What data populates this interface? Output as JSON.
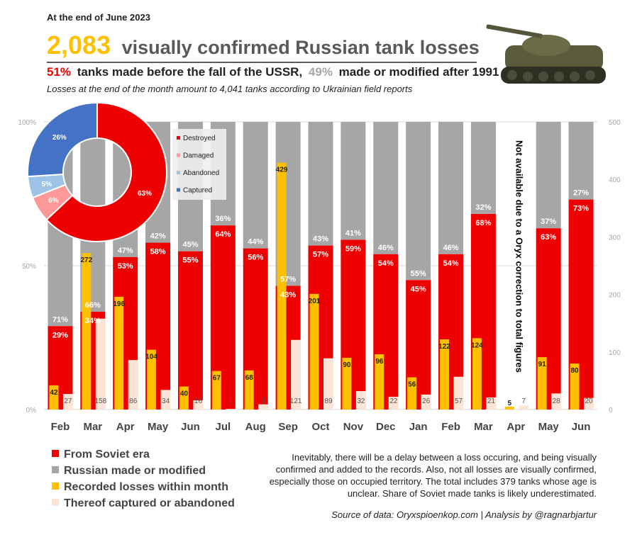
{
  "header": {
    "date_label": "At the end of June 2023",
    "title_number": "2,083",
    "title_text": "visually confirmed Russian tank losses",
    "subtitle": {
      "soviet_pct": "51%",
      "soviet_text": "tanks made before the fall of the USSR,",
      "post_pct": "49%",
      "post_text": "made or modified after 1991"
    },
    "note": "Losses at the end of the month amount to 4,041 tanks according to Ukrainian field reports"
  },
  "colors": {
    "soviet": "#ee0000",
    "russian": "#a6a6a6",
    "recorded": "#ffc000",
    "captured": "#fbe5d6",
    "destroyed": "#ee0000",
    "damaged": "#ff9999",
    "abandoned": "#9dc3e6",
    "captured_donut": "#4472c4",
    "title_number": "#ffc000"
  },
  "chart_data": [
    {
      "type": "bar",
      "categories": [
        "Feb",
        "Mar",
        "Apr",
        "May",
        "Jun",
        "Jul",
        "Aug",
        "Sep",
        "Oct",
        "Nov",
        "Dec",
        "Jan",
        "Feb",
        "Mar",
        "Apr",
        "May",
        "Jun"
      ],
      "y_left": {
        "ticks": [
          "0%",
          "50%",
          "100%"
        ],
        "range": [
          0,
          100
        ]
      },
      "y_right": {
        "ticks": [
          "0",
          "100",
          "200",
          "300",
          "400",
          "500"
        ],
        "range": [
          0,
          500
        ]
      },
      "series": [
        {
          "name": "From Soviet era",
          "axis": "left",
          "values": [
            29,
            34,
            53,
            58,
            55,
            64,
            56,
            43,
            57,
            59,
            54,
            45,
            54,
            68,
            null,
            63,
            73
          ],
          "labels": [
            "29%",
            "34%",
            "53%",
            "58%",
            "55%",
            "64%",
            "56%",
            "43%",
            "57%",
            "59%",
            "54%",
            "45%",
            "54%",
            "68%",
            "",
            "63%",
            "73%"
          ]
        },
        {
          "name": "Russian made or modified",
          "axis": "left",
          "values": [
            71,
            66,
            47,
            42,
            45,
            36,
            44,
            57,
            43,
            41,
            46,
            55,
            46,
            32,
            null,
            37,
            27
          ],
          "labels": [
            "71%",
            "66%",
            "47%",
            "42%",
            "45%",
            "36%",
            "44%",
            "57%",
            "43%",
            "41%",
            "46%",
            "55%",
            "46%",
            "32%",
            "",
            "37%",
            "27%"
          ]
        },
        {
          "name": "Recorded losses within month",
          "axis": "right",
          "values": [
            42,
            272,
            196,
            104,
            40,
            67,
            68,
            429,
            201,
            90,
            96,
            56,
            122,
            124,
            5,
            91,
            80
          ],
          "labels": [
            "42",
            "272",
            "196",
            "104",
            "40",
            "67",
            "68",
            "429",
            "201",
            "90",
            "96",
            "56",
            "122",
            "124",
            "5",
            "91",
            "80"
          ]
        },
        {
          "name": "Thereof captured or abandoned",
          "axis": "right",
          "values": [
            27,
            158,
            86,
            34,
            16,
            1,
            9,
            121,
            89,
            32,
            22,
            26,
            57,
            21,
            7,
            28,
            20
          ],
          "labels": [
            "27",
            "158",
            "86",
            "34",
            "16",
            "1",
            "9",
            "121",
            "89",
            "32",
            "22",
            "26",
            "57",
            "21",
            "7",
            "28",
            "20"
          ]
        }
      ],
      "annotation": "Not available due to a Oryx correction to total figures",
      "legend": [
        "From Soviet era",
        "Russian made or modified",
        "Recorded losses within month",
        "Thereof captured or abandoned"
      ],
      "legend_position": "bottom-left"
    },
    {
      "type": "pie",
      "variant": "donut",
      "slices": [
        {
          "label": "Destroyed",
          "value": 63,
          "text": "63%"
        },
        {
          "label": "Damaged",
          "value": 6,
          "text": "6%"
        },
        {
          "label": "Abandoned",
          "value": 5,
          "text": "5%"
        },
        {
          "label": "Captured",
          "value": 26,
          "text": "26%"
        }
      ],
      "legend_position": "right"
    }
  ],
  "footer": {
    "paragraph": [
      "Inevitably, there will be a delay between a loss occuring, and being visually",
      "confirmed and added to the records. Also, not all losses are visually confirmed,",
      "especially those on occupied territory. The total includes 379 tanks whose age is",
      "unclear. Share of Soviet made tanks is likely underestimated."
    ],
    "source": "Source of data: Oryxspioenkop.com | Analysis by @ragnarbjartur"
  },
  "image": {
    "icon": "tank-photo"
  }
}
